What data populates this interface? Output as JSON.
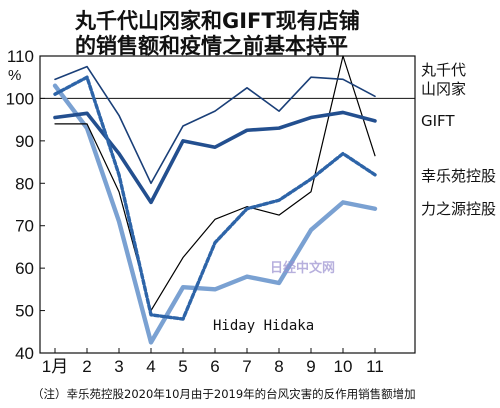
{
  "chart_data": {
    "type": "line",
    "title_lines": [
      "丸千代山冈家和GIFT现有店铺",
      "的销售额和疫情之前基本持平"
    ],
    "unit": "%",
    "x": [
      "1月",
      "2",
      "3",
      "4",
      "5",
      "6",
      "7",
      "8",
      "9",
      "10",
      "11"
    ],
    "yticks": [
      "40",
      "50",
      "60",
      "70",
      "80",
      "90",
      "100",
      "110"
    ],
    "ylim": [
      40,
      110
    ],
    "reference_line": 100,
    "series": [
      {
        "name": "丸千代山冈家",
        "color": "#1a3f78",
        "values": [
          104.5,
          107.5,
          96,
          80,
          93.5,
          97,
          102.5,
          97,
          105,
          104.5,
          100.5
        ]
      },
      {
        "name": "GIFT",
        "color": "#234f8f",
        "values": [
          95.5,
          96.5,
          87,
          75.5,
          90,
          88.5,
          92.5,
          93,
          95.5,
          96.7,
          94.7
        ]
      },
      {
        "name": "幸乐苑控股",
        "color": "#2d64a8",
        "values": [
          101,
          105,
          82,
          49,
          48,
          66,
          74,
          76,
          81,
          87,
          82
        ]
      },
      {
        "name": "力之源控股",
        "color": "#7aa1d2",
        "values": [
          103,
          93,
          71,
          42.5,
          55.5,
          55,
          58,
          56.5,
          69,
          75.5,
          74
        ]
      },
      {
        "name": "Hiday Hidaka",
        "color": "#000000",
        "values": [
          94,
          94,
          78,
          50,
          62.5,
          71.5,
          74.5,
          72.5,
          78,
          110,
          86.5
        ]
      }
    ],
    "series_labels": {
      "maruchiyo_line1": "丸千代",
      "maruchiyo_line2": "山冈家",
      "gift": "GIFT",
      "koraku": "幸乐苑控股",
      "chikara": "力之源控股",
      "hiday": "Hiday Hidaka"
    },
    "note": "（注）幸乐苑控股2020年10月由于2019年的台风灾害的反作用销售额增加"
  },
  "watermark": "日经中文网"
}
